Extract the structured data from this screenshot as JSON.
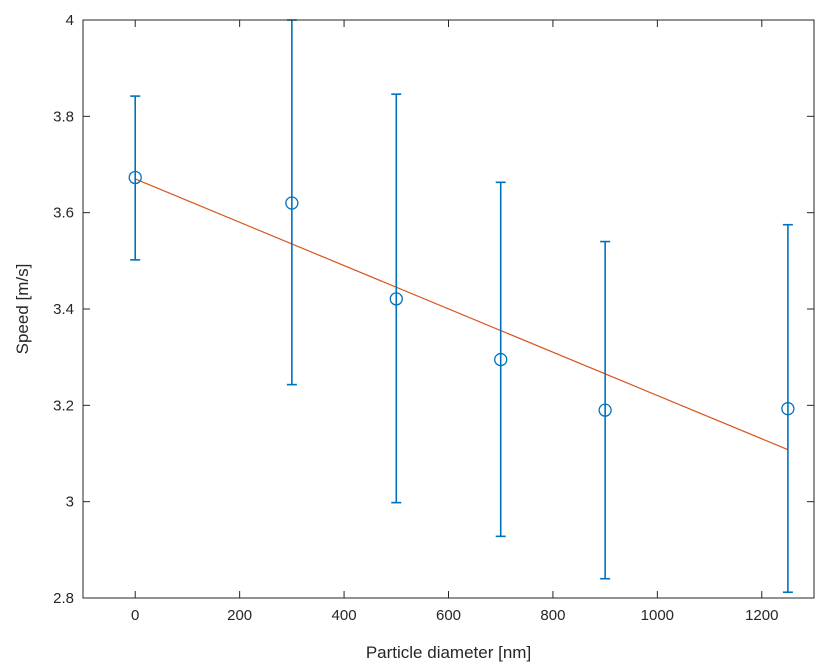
{
  "chart_data": {
    "type": "scatter",
    "xlabel": "Particle diameter [nm]",
    "ylabel": "Speed [m/s]",
    "xlim": [
      -100,
      1300
    ],
    "ylim": [
      2.8,
      4.0
    ],
    "xticks": [
      0,
      200,
      400,
      600,
      800,
      1000,
      1200
    ],
    "yticks": [
      2.8,
      3.0,
      3.2,
      3.4,
      3.6,
      3.8,
      4.0
    ],
    "xtick_labels": [
      "0",
      "200",
      "400",
      "600",
      "800",
      "1000",
      "1200"
    ],
    "ytick_labels": [
      "2.8",
      "3",
      "3.2",
      "3.4",
      "3.6",
      "3.8",
      "4"
    ],
    "grid": false,
    "box": true,
    "series": [
      {
        "type": "errorbar",
        "marker": "circle",
        "color": "#0072BD",
        "points": [
          {
            "x": 0,
            "y": 3.673,
            "low": 3.502,
            "high": 3.842
          },
          {
            "x": 300,
            "y": 3.62,
            "low": 3.243,
            "high": 4.0
          },
          {
            "x": 500,
            "y": 3.421,
            "low": 2.998,
            "high": 3.846
          },
          {
            "x": 700,
            "y": 3.295,
            "low": 2.928,
            "high": 3.663
          },
          {
            "x": 900,
            "y": 3.19,
            "low": 2.84,
            "high": 3.54
          },
          {
            "x": 1250,
            "y": 3.193,
            "low": 2.812,
            "high": 3.575
          }
        ]
      },
      {
        "type": "line",
        "color": "#D95319",
        "x": [
          0,
          1250
        ],
        "y": [
          3.67,
          3.108
        ]
      }
    ]
  }
}
